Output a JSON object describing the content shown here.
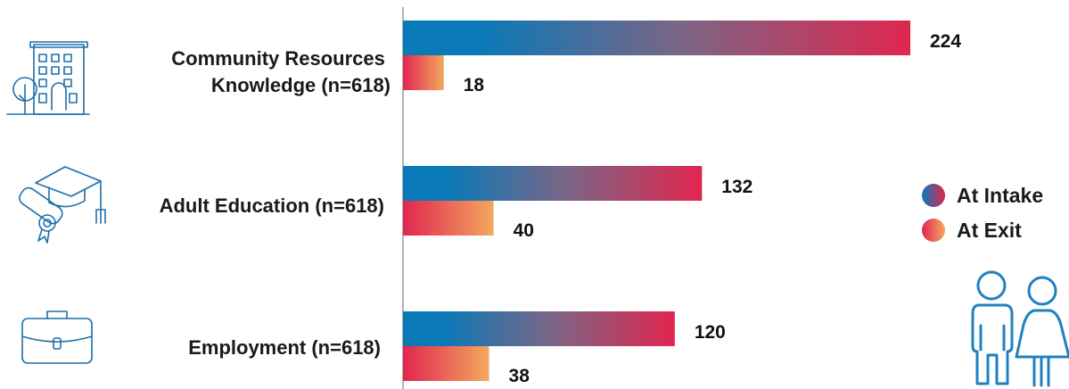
{
  "chart_data": {
    "type": "bar",
    "orientation": "horizontal",
    "categories": [
      "Community Resources\nKnowledge (n=618)",
      "Adult Education (n=618)",
      "Employment (n=618)"
    ],
    "series": [
      {
        "name": "At Intake",
        "values": [
          224,
          132,
          120
        ]
      },
      {
        "name": "At Exit",
        "values": [
          18,
          40,
          38
        ]
      }
    ],
    "xlim": [
      0,
      224
    ],
    "legend_position": "right",
    "grid": false
  },
  "colors": {
    "intake_start": "#0a79b8",
    "intake_mid": "#7b6585",
    "intake_end": "#e1264f",
    "exit_start": "#e1264f",
    "exit_end": "#f3a85f",
    "axis": "#9a9a9a"
  },
  "icons": [
    "building-icon",
    "graduation-icon",
    "briefcase-icon",
    "people-icon"
  ]
}
